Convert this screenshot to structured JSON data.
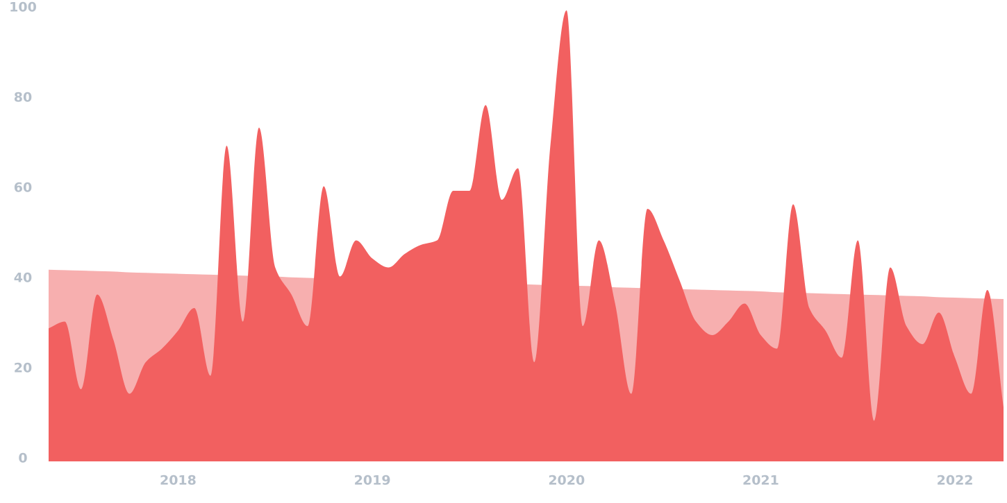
{
  "chart_data": {
    "type": "area",
    "categories": [
      null,
      null,
      null,
      null,
      null,
      null,
      null,
      null,
      "2018",
      null,
      null,
      null,
      null,
      null,
      null,
      null,
      null,
      null,
      null,
      null,
      "2019",
      null,
      null,
      null,
      null,
      null,
      null,
      null,
      null,
      null,
      null,
      null,
      "2020",
      null,
      null,
      null,
      null,
      null,
      null,
      null,
      null,
      null,
      null,
      null,
      "2021",
      null,
      null,
      null,
      null,
      null,
      null,
      null,
      null,
      null,
      null,
      null,
      "2022",
      null,
      null,
      null
    ],
    "series": [
      {
        "color": "#f7afaf",
        "values": [
          42.5,
          42.4,
          42.3,
          42.2,
          42.1,
          41.9,
          41.8,
          41.7,
          41.6,
          41.5,
          41.4,
          41.3,
          41.2,
          41.1,
          41.0,
          40.8,
          40.7,
          40.6,
          40.5,
          40.4,
          40.3,
          40.2,
          40.1,
          40.0,
          39.9,
          39.7,
          39.6,
          39.5,
          39.4,
          39.3,
          39.2,
          39.1,
          39.0,
          38.9,
          38.8,
          38.6,
          38.5,
          38.4,
          38.3,
          38.2,
          38.1,
          38.0,
          37.9,
          37.8,
          37.7,
          37.5,
          37.4,
          37.3,
          37.2,
          37.1,
          37.0,
          36.9,
          36.8,
          36.7,
          36.6,
          36.4,
          36.3,
          36.2,
          36.1,
          36.0
        ]
      },
      {
        "color": "#f26060",
        "values": [
          29.5,
          31,
          16,
          37,
          27,
          15,
          22,
          25,
          29,
          34,
          19,
          70,
          31,
          74,
          43,
          37,
          30,
          61,
          41,
          49,
          45,
          43,
          46,
          48,
          49,
          60,
          60,
          79,
          58,
          65,
          22,
          70,
          100,
          30,
          49,
          35,
          15,
          56,
          49,
          40,
          31,
          28,
          31,
          35,
          28,
          25,
          57,
          34,
          29,
          23,
          49,
          9,
          43,
          30,
          26,
          33,
          23,
          15,
          38,
          12
        ]
      }
    ],
    "ylim": [
      0,
      100
    ],
    "yticks": [
      0,
      20,
      40,
      60,
      80,
      100
    ],
    "grid": false
  }
}
